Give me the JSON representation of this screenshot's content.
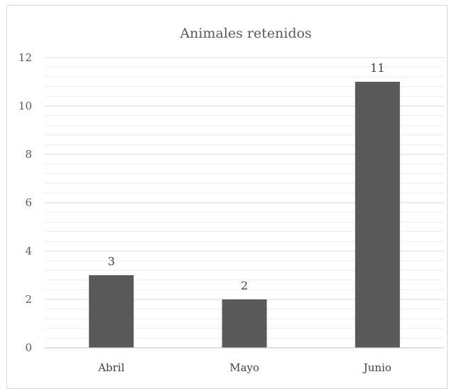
{
  "chart_data": {
    "type": "bar",
    "title": "Animales retenidos",
    "categories": [
      "Abril",
      "Mayo",
      "Junio"
    ],
    "values": [
      3,
      2,
      11
    ],
    "data_labels": [
      "3",
      "2",
      "11"
    ],
    "xlabel": "",
    "ylabel": "",
    "ylim": [
      0,
      12
    ],
    "y_ticks": [
      "0",
      "2",
      "4",
      "6",
      "8",
      "10",
      "12"
    ],
    "grid": true,
    "minor_grid": true,
    "legend": "none",
    "bar_color": "#595959",
    "gridline_color": "#d9d9d9"
  }
}
